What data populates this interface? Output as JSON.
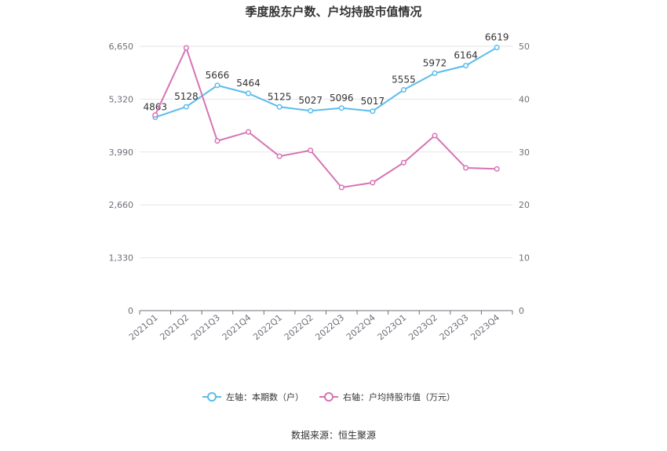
{
  "chart_data": {
    "type": "line",
    "title": "季度股东户数、户均持股市值情况",
    "categories": [
      "2021Q1",
      "2021Q2",
      "2021Q3",
      "2021Q4",
      "2022Q1",
      "2022Q2",
      "2022Q3",
      "2022Q4",
      "2023Q1",
      "2023Q2",
      "2023Q3",
      "2023Q4"
    ],
    "left_axis": {
      "ticks": [
        "0",
        "1,330",
        "2,660",
        "3,990",
        "5,320",
        "6,650"
      ],
      "ylim": [
        0,
        6650
      ]
    },
    "right_axis": {
      "ticks": [
        "0",
        "10",
        "20",
        "30",
        "40",
        "50"
      ],
      "ylim": [
        0,
        50
      ]
    },
    "series": [
      {
        "name": "左轴：本期数（户）",
        "axis": "left",
        "color": "#5bbcec",
        "values": [
          4863,
          5128,
          5666,
          5464,
          5125,
          5027,
          5096,
          5017,
          5555,
          5972,
          6164,
          6619
        ],
        "labels": [
          "4863",
          "5128",
          "5666",
          "5464",
          "5125",
          "5027",
          "5096",
          "5017",
          "5555",
          "5972",
          "6164",
          "6619"
        ]
      },
      {
        "name": "右轴：户均持股市值（万元）",
        "axis": "right",
        "color": "#d773b5",
        "values": [
          37.0,
          49.7,
          32.1,
          33.8,
          29.2,
          30.3,
          23.3,
          24.2,
          28.0,
          33.1,
          27.0,
          26.8
        ]
      }
    ],
    "grid": true,
    "legend_position": "bottom"
  },
  "source": "数据来源：恒生聚源"
}
